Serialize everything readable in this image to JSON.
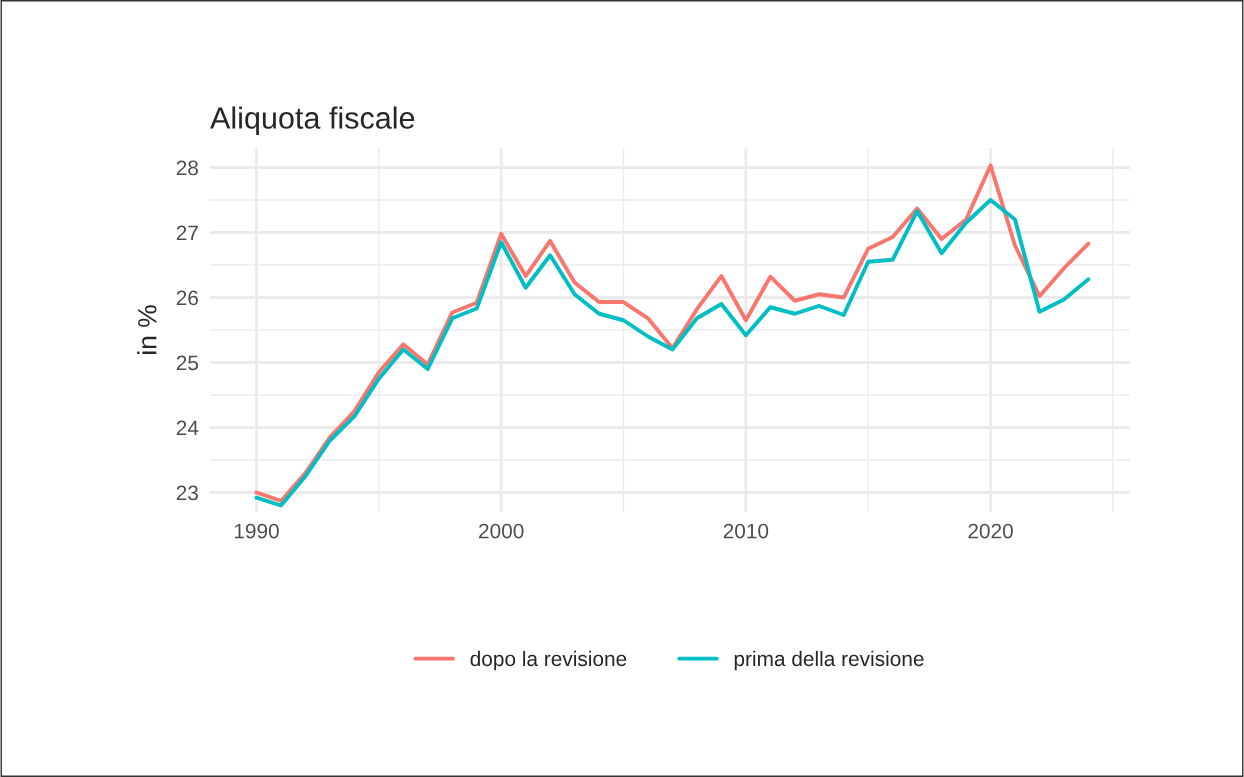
{
  "chart_data": {
    "type": "line",
    "title": "Aliquota fiscale",
    "ylabel": "in %",
    "x": [
      1990,
      1991,
      1992,
      1993,
      1994,
      1995,
      1996,
      1997,
      1998,
      1999,
      2000,
      2001,
      2002,
      2003,
      2004,
      2005,
      2006,
      2007,
      2008,
      2009,
      2010,
      2011,
      2012,
      2013,
      2014,
      2015,
      2016,
      2017,
      2018,
      2019,
      2020,
      2021,
      2022,
      2023,
      2024
    ],
    "series": [
      {
        "name": "dopo la revisione",
        "color": "#f8766d",
        "values": [
          23.0,
          22.87,
          23.3,
          23.85,
          24.25,
          24.85,
          25.28,
          24.97,
          25.77,
          25.92,
          26.98,
          26.33,
          26.87,
          26.23,
          25.93,
          25.93,
          25.68,
          25.22,
          25.82,
          26.33,
          25.65,
          26.32,
          25.95,
          26.05,
          26.0,
          26.75,
          26.93,
          27.37,
          26.9,
          27.2,
          28.03,
          26.8,
          26.02,
          26.45,
          26.83
        ]
      },
      {
        "name": "prima della revisione",
        "color": "#00bfc4",
        "values": [
          22.92,
          22.8,
          23.25,
          23.8,
          24.17,
          24.75,
          25.2,
          24.9,
          25.68,
          25.83,
          26.85,
          26.15,
          26.65,
          26.05,
          25.75,
          25.65,
          25.4,
          25.2,
          25.68,
          25.9,
          25.42,
          25.85,
          25.75,
          25.87,
          25.73,
          26.55,
          26.58,
          27.33,
          26.68,
          27.15,
          27.5,
          27.2,
          25.78,
          25.97,
          26.28
        ]
      }
    ],
    "xlim": [
      1988.1,
      2025.7
    ],
    "ylim": [
      22.7,
      28.3
    ],
    "xticks": [
      1990,
      {
        "value": 1995,
        "label": null
      },
      2000,
      {
        "value": 2005,
        "label": null
      },
      2010,
      {
        "value": 2015,
        "label": null
      },
      2020,
      {
        "value": 2025,
        "label": null
      }
    ],
    "yticks": [
      23,
      {
        "value": 23.5,
        "label": null
      },
      24,
      {
        "value": 24.5,
        "label": null
      },
      25,
      {
        "value": 25.5,
        "label": null
      },
      26,
      {
        "value": 26.5,
        "label": null
      },
      27,
      {
        "value": 27.5,
        "label": null
      },
      28
    ],
    "grid": true,
    "legend": "bottom",
    "line_style": "solid",
    "marker": "none"
  }
}
